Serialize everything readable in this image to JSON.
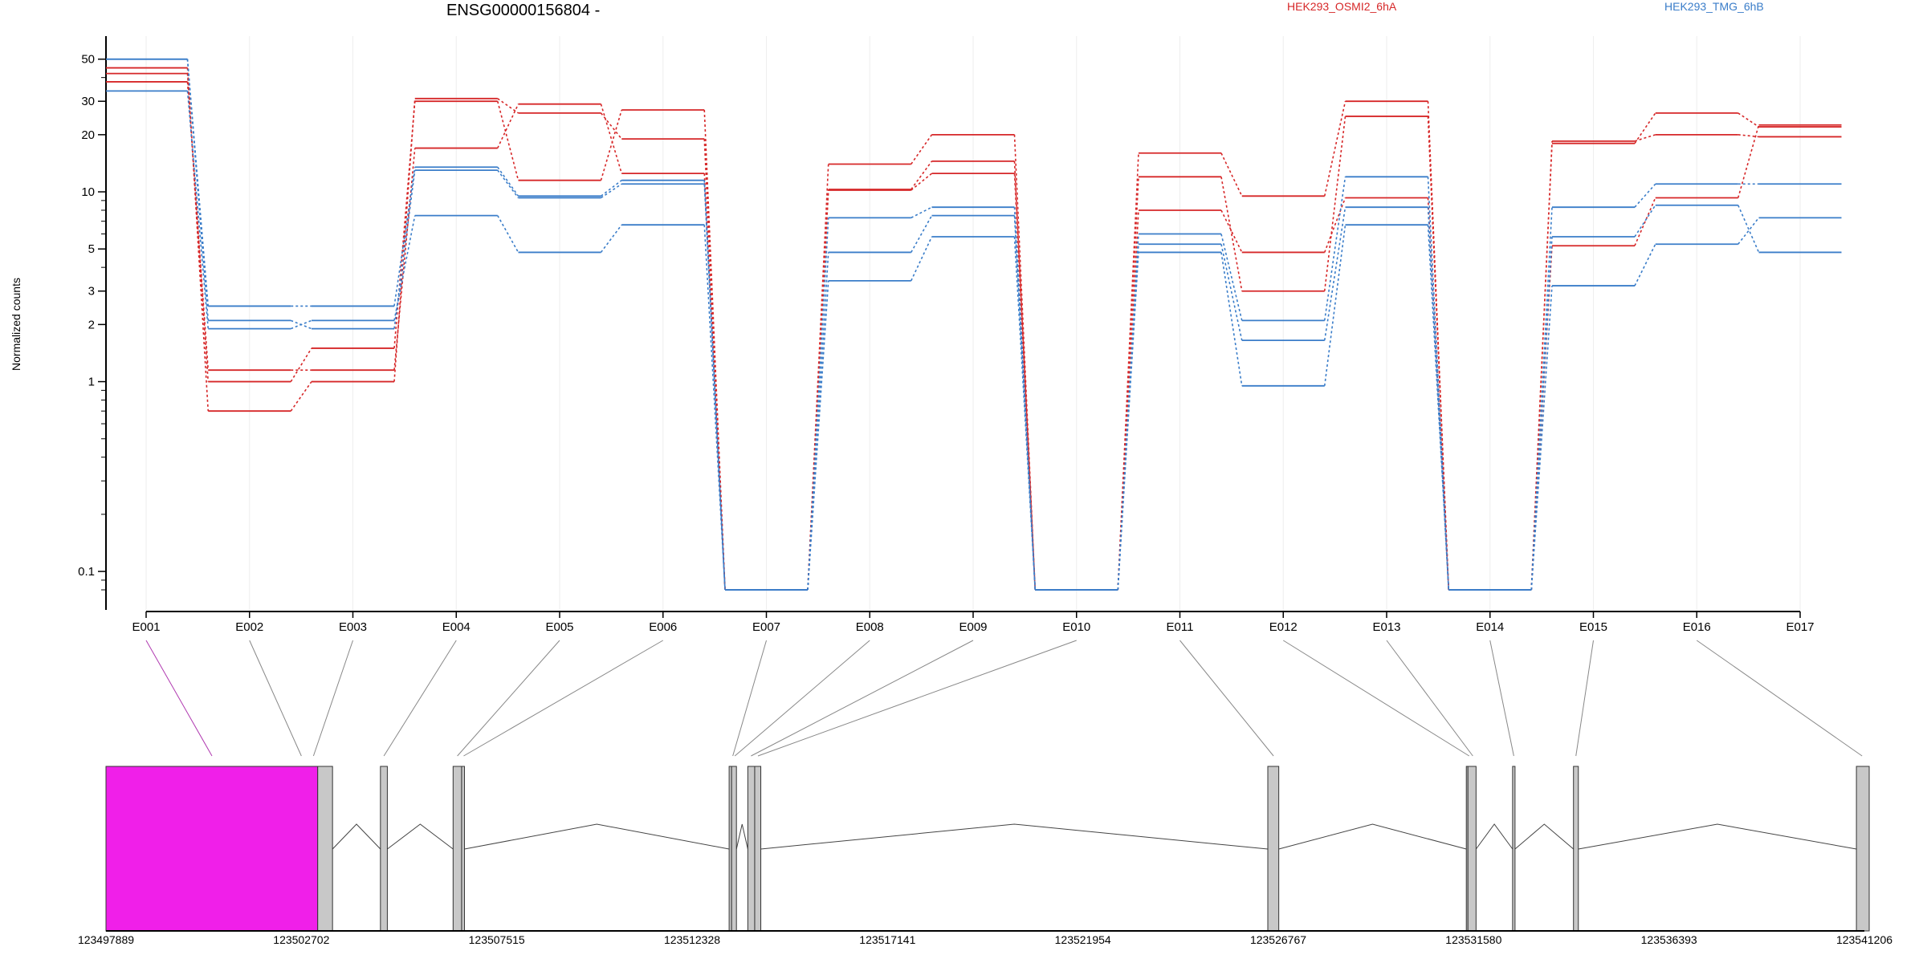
{
  "title": "ENSG00000156804 -",
  "y_axis_label": "Normalized counts",
  "legend": [
    {
      "label": "HEK293_OSMI2_6hA",
      "color": "#d62728"
    },
    {
      "label": "HEK293_TMG_6hB",
      "color": "#3a7dc9"
    }
  ],
  "colors": {
    "highlight_exon": "#f01fe9",
    "exon": "#c8c8c8"
  },
  "chart_data": {
    "type": "line",
    "y_scale": "log",
    "ylim": [
      0.08,
      60
    ],
    "y_ticks": [
      0.1,
      1,
      2,
      3,
      5,
      10,
      20,
      30,
      50
    ],
    "categories": [
      "E001",
      "E002",
      "E003",
      "E004",
      "E005",
      "E006",
      "E007",
      "E008",
      "E009",
      "E010",
      "E011",
      "E012",
      "E013",
      "E014",
      "E015",
      "E016",
      "E017"
    ],
    "series": [
      {
        "group": "HEK293_OSMI2_6hA",
        "values": [
          45,
          0.7,
          1.0,
          31,
          26,
          19,
          0.08,
          14,
          20,
          0.08,
          16,
          9.5,
          30,
          0.08,
          18,
          26,
          22
        ]
      },
      {
        "group": "HEK293_OSMI2_6hA",
        "values": [
          42,
          1.0,
          1.5,
          30,
          11.5,
          27,
          0.08,
          10.3,
          14.5,
          0.08,
          12,
          3.0,
          25,
          0.08,
          18.5,
          20,
          19.5
        ]
      },
      {
        "group": "HEK293_OSMI2_6hA",
        "values": [
          38,
          1.15,
          1.15,
          17,
          29,
          12.5,
          0.08,
          10.2,
          12.5,
          0.08,
          8.0,
          4.8,
          9.3,
          0.08,
          5.2,
          9.3,
          22.5
        ]
      },
      {
        "group": "HEK293_TMG_6hB",
        "values": [
          50,
          2.5,
          2.5,
          13.5,
          9.5,
          11.5,
          0.08,
          7.3,
          8.3,
          0.08,
          6.0,
          2.1,
          12,
          0.08,
          8.3,
          11,
          11
        ]
      },
      {
        "group": "HEK293_TMG_6hB",
        "values": [
          50,
          2.1,
          1.9,
          13.0,
          9.3,
          11.0,
          0.08,
          4.8,
          7.5,
          0.08,
          5.3,
          1.65,
          8.3,
          0.08,
          5.8,
          8.5,
          4.8
        ]
      },
      {
        "group": "HEK293_TMG_6hB",
        "values": [
          34,
          1.9,
          2.1,
          7.5,
          4.8,
          6.7,
          0.08,
          3.4,
          5.8,
          0.08,
          4.8,
          0.95,
          6.7,
          0.08,
          3.2,
          5.3,
          7.3
        ]
      }
    ],
    "gene_model": {
      "coord_ticks": [
        "123497889",
        "123502702",
        "123507515",
        "123512328",
        "123517141",
        "123521954",
        "123526767",
        "123531580",
        "123536393",
        "123541206"
      ],
      "range": [
        123497889,
        123541206
      ],
      "exons": [
        {
          "start": 123497889,
          "end": 123503105,
          "highlight": true
        },
        {
          "start": 123503105,
          "end": 123503470
        },
        {
          "start": 123504650,
          "end": 123504820
        },
        {
          "start": 123506440,
          "end": 123506650
        },
        {
          "start": 123506650,
          "end": 123506720
        },
        {
          "start": 123513240,
          "end": 123513300
        },
        {
          "start": 123513300,
          "end": 123513420
        },
        {
          "start": 123513700,
          "end": 123513870
        },
        {
          "start": 123513870,
          "end": 123514020
        },
        {
          "start": 123526510,
          "end": 123526780
        },
        {
          "start": 123531400,
          "end": 123531440
        },
        {
          "start": 123531440,
          "end": 123531640
        },
        {
          "start": 123532540,
          "end": 123532600
        },
        {
          "start": 123534040,
          "end": 123534160
        },
        {
          "start": 123541010,
          "end": 123541325
        }
      ],
      "links": [
        123500500,
        123502702,
        123503000,
        123504735,
        123506545,
        123506700,
        123513330,
        123513380,
        123513780,
        123513950,
        123526650,
        123531470,
        123531560,
        123532570,
        123534100,
        123541150
      ]
    }
  }
}
